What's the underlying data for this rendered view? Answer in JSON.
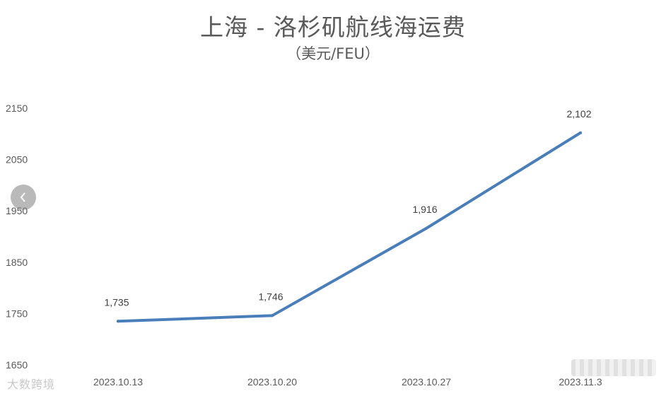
{
  "page": {
    "title": "上海 - 洛杉矶航线海运费",
    "subtitle": "（美元/FEU）",
    "watermark_left": "大数跨境"
  },
  "colors": {
    "line": "#4a7ebb",
    "text": "#595959",
    "label": "#404040"
  },
  "icons": {
    "nav": "chevron-left-icon"
  },
  "chart_data": {
    "type": "line",
    "title": "上海 - 洛杉矶航线海运费",
    "subtitle": "（美元/FEU）",
    "categories": [
      "2023.10.13",
      "2023.10.20",
      "2023.10.27",
      "2023.11.3"
    ],
    "series": [
      {
        "values": [
          1735,
          1746,
          1916,
          2102
        ],
        "labels": [
          "1,735",
          "1,746",
          "1,916",
          "2,102"
        ]
      }
    ],
    "ylim": [
      1650,
      2150
    ],
    "yticks": [
      1650,
      1750,
      1850,
      1950,
      2050,
      2150
    ],
    "ytick_labels": [
      "1650",
      "1750",
      "1850",
      "1950",
      "2050",
      "2150"
    ],
    "grid": false,
    "legend": "none",
    "xlabel": "",
    "ylabel": ""
  }
}
